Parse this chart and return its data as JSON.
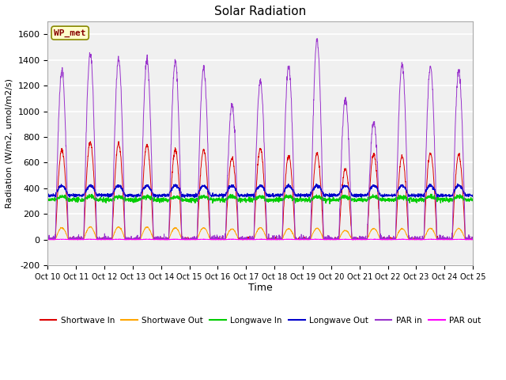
{
  "title": "Solar Radiation",
  "xlabel": "Time",
  "ylabel": "Radiation (W/m2, umol/m2/s)",
  "ylim": [
    -200,
    1700
  ],
  "yticks": [
    -200,
    0,
    200,
    400,
    600,
    800,
    1000,
    1200,
    1400,
    1600
  ],
  "x_tick_labels": [
    "Oct 10",
    "Oct 11",
    "Oct 12",
    "Oct 13",
    "Oct 14",
    "Oct 15",
    "Oct 16",
    "Oct 17",
    "Oct 18",
    "Oct 19",
    "Oct 20",
    "Oct 21",
    "Oct 22",
    "Oct 23",
    "Oct 24",
    "Oct 25"
  ],
  "station_label": "WP_met",
  "fig_facecolor": "#ffffff",
  "plot_facecolor": "#f0f0f0",
  "grid_color": "#d8d8d8",
  "series": {
    "shortwave_in": {
      "color": "#dd0000",
      "label": "Shortwave In"
    },
    "shortwave_out": {
      "color": "#ffa500",
      "label": "Shortwave Out"
    },
    "longwave_in": {
      "color": "#00cc00",
      "label": "Longwave In"
    },
    "longwave_out": {
      "color": "#0000cc",
      "label": "Longwave Out"
    },
    "par_in": {
      "color": "#9933cc",
      "label": "PAR in"
    },
    "par_out": {
      "color": "#ff00ff",
      "label": "PAR out"
    }
  },
  "n_days": 15,
  "points_per_day": 144,
  "day_peaks_sw": [
    700,
    760,
    750,
    740,
    700,
    700,
    640,
    710,
    650,
    670,
    550,
    670,
    650,
    680,
    660
  ],
  "day_peaks_par": [
    1320,
    1450,
    1410,
    1400,
    1390,
    1340,
    1050,
    1240,
    1350,
    1560,
    1100,
    920,
    1370,
    1350,
    1310
  ]
}
